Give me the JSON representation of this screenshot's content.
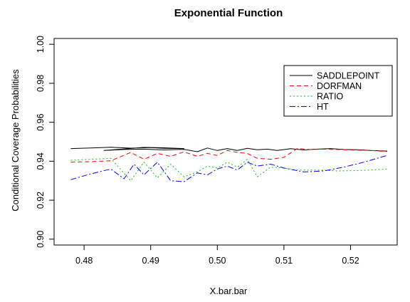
{
  "chart_data": {
    "type": "line",
    "title": "Exponential Function",
    "xlabel": "X.bar.bar",
    "ylabel": "Conditional Coverage Probabilities",
    "xlim": [
      0.4755,
      0.527
    ],
    "ylim": [
      0.897,
      1.003
    ],
    "x_ticks": [
      0.48,
      0.49,
      0.5,
      0.51,
      0.52
    ],
    "x_tick_labels": [
      "0.48",
      "0.49",
      "0.50",
      "0.51",
      "0.52"
    ],
    "y_ticks": [
      0.9,
      0.92,
      0.94,
      0.96,
      0.98,
      1.0
    ],
    "y_tick_labels": [
      "0.90",
      "0.92",
      "0.94",
      "0.96",
      "0.98",
      "1.00"
    ],
    "grid": false,
    "legend_position": "top-right",
    "series": [
      {
        "name": "SADDLEPOINT",
        "color": "#000000",
        "dash": "solid",
        "x": [
          0.478,
          0.481,
          0.484,
          0.487,
          0.49,
          0.492,
          0.495,
          0.492,
          0.489,
          0.486,
          0.483,
          0.486,
          0.489,
          0.492,
          0.495,
          0.497,
          0.4985,
          0.5,
          0.5015,
          0.503,
          0.5045,
          0.506,
          0.5075,
          0.509,
          0.511,
          0.513,
          0.515,
          0.517,
          0.519,
          0.521,
          0.523,
          0.5255
        ],
        "y": [
          0.9465,
          0.9468,
          0.9472,
          0.9467,
          0.947,
          0.9466,
          0.9465,
          0.9469,
          0.9471,
          0.9463,
          0.9455,
          0.946,
          0.9462,
          0.9458,
          0.9461,
          0.9449,
          0.9468,
          0.9455,
          0.9465,
          0.9455,
          0.9466,
          0.9459,
          0.9462,
          0.9455,
          0.9464,
          0.9458,
          0.9462,
          0.9465,
          0.946,
          0.9459,
          0.9455,
          0.9452
        ]
      },
      {
        "name": "DORFMAN",
        "color": "#ff0000",
        "dash": "6,4",
        "x": [
          0.478,
          0.481,
          0.484,
          0.487,
          0.489,
          0.491,
          0.493,
          0.495,
          0.497,
          0.4985,
          0.5,
          0.5015,
          0.503,
          0.5045,
          0.506,
          0.508,
          0.51,
          0.512,
          0.514,
          0.516,
          0.518,
          0.52,
          0.523,
          0.5255
        ],
        "y": [
          0.9395,
          0.9398,
          0.9402,
          0.9445,
          0.941,
          0.944,
          0.9425,
          0.9448,
          0.9425,
          0.944,
          0.943,
          0.9455,
          0.9445,
          0.944,
          0.9415,
          0.941,
          0.942,
          0.9465,
          0.946,
          0.9462,
          0.946,
          0.9458,
          0.9455,
          0.945
        ]
      },
      {
        "name": "RATIO",
        "color": "#00c800",
        "dash": "2,3",
        "x": [
          0.478,
          0.481,
          0.484,
          0.487,
          0.489,
          0.491,
          0.493,
          0.495,
          0.497,
          0.4985,
          0.5,
          0.5015,
          0.503,
          0.5045,
          0.506,
          0.508,
          0.51,
          0.512,
          0.515,
          0.518,
          0.521,
          0.523,
          0.5255
        ],
        "y": [
          0.9405,
          0.941,
          0.9415,
          0.93,
          0.9395,
          0.9315,
          0.9385,
          0.932,
          0.9345,
          0.9375,
          0.9365,
          0.9395,
          0.937,
          0.941,
          0.932,
          0.937,
          0.9365,
          0.9355,
          0.9355,
          0.935,
          0.9352,
          0.9355,
          0.936
        ]
      },
      {
        "name": "HT",
        "color": "#0000ff",
        "dash": "8,3,2,3",
        "x": [
          0.478,
          0.481,
          0.484,
          0.486,
          0.4875,
          0.489,
          0.491,
          0.493,
          0.495,
          0.497,
          0.4985,
          0.5,
          0.5015,
          0.503,
          0.5045,
          0.506,
          0.508,
          0.51,
          0.513,
          0.516,
          0.519,
          0.522,
          0.5255
        ],
        "y": [
          0.9305,
          0.9335,
          0.936,
          0.931,
          0.9385,
          0.933,
          0.9395,
          0.93,
          0.9295,
          0.934,
          0.933,
          0.936,
          0.9375,
          0.9355,
          0.9395,
          0.9375,
          0.9385,
          0.9365,
          0.9345,
          0.935,
          0.937,
          0.9395,
          0.943
        ]
      }
    ]
  }
}
